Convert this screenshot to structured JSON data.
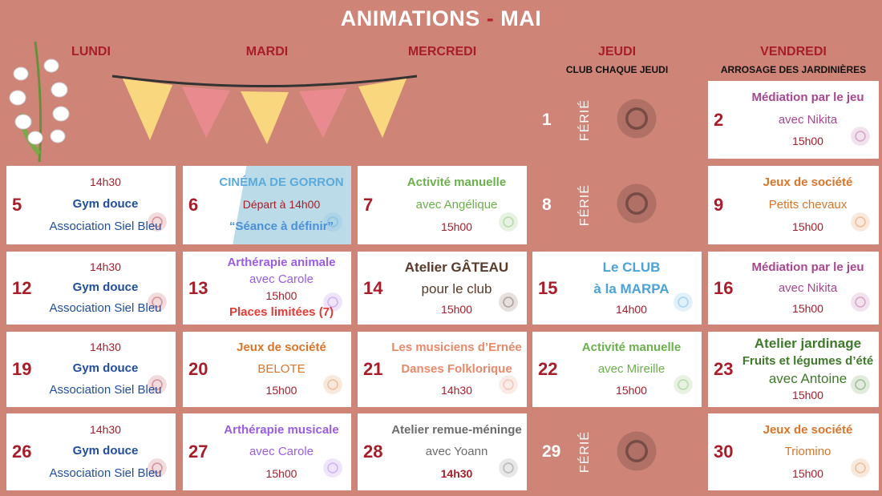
{
  "header": {
    "title_left": "ANIMATIONS",
    "dash": "-",
    "title_right": "MAI"
  },
  "days": [
    {
      "label": "LUNDI",
      "sub": ""
    },
    {
      "label": "MARDI",
      "sub": ""
    },
    {
      "label": "MERCREDI",
      "sub": ""
    },
    {
      "label": "JEUDI",
      "sub": "CLUB CHAQUE JEUDI"
    },
    {
      "label": "VENDREDI",
      "sub": "ARROSAGE DES JARDINIÈRES"
    }
  ],
  "colors": {
    "background": "#cf8478",
    "day_number": "#a71d2a",
    "time": "#a71d2a"
  },
  "ferie_label": "FÉRIÉ",
  "cells": [
    {
      "week": 0,
      "weekday": 3,
      "day": "1",
      "ferie": true,
      "icon": "cherries-icon",
      "glyph": "❦"
    },
    {
      "week": 0,
      "weekday": 4,
      "day": "2",
      "icon": "dice-icon",
      "glyph": "⚅",
      "lines": [
        {
          "text": "Médiation par le jeu",
          "color": "#a8478f",
          "kind": "t"
        },
        {
          "text": "avec Nikita",
          "color": "#a8478f",
          "kind": "s"
        },
        {
          "text": "15h00",
          "color": "#a71d2a",
          "kind": "h"
        }
      ]
    },
    {
      "week": 1,
      "weekday": 0,
      "day": "5",
      "icon": "dancers-icon",
      "glyph": "☺",
      "lines": [
        {
          "text": "14h30",
          "color": "#a71d2a",
          "kind": "h"
        },
        {
          "text": "Gym douce",
          "color": "#1f4e9c",
          "kind": "t"
        },
        {
          "text": "Association Siel Bleu",
          "color": "#1f4e9c",
          "kind": "s"
        }
      ]
    },
    {
      "week": 1,
      "weekday": 1,
      "day": "6",
      "icon": "film-projector-icon",
      "glyph": "⚙",
      "tint": "#bcdbe8",
      "lines": [
        {
          "text": "CINÉMA DE GORRON",
          "color": "#5aaadc",
          "kind": "t"
        },
        {
          "text": "Départ à 14h00",
          "color": "#a71d2a",
          "kind": "h"
        },
        {
          "text": "“Séance à définir”",
          "color": "#4a90d9",
          "kind": "t"
        }
      ]
    },
    {
      "week": 1,
      "weekday": 2,
      "day": "7",
      "icon": "paint-palette-icon",
      "glyph": "✎",
      "lines": [
        {
          "text": "Activité manuelle",
          "color": "#6ab04c",
          "kind": "t"
        },
        {
          "text": "avec Angélique",
          "color": "#6ab04c",
          "kind": "s"
        },
        {
          "text": "15h00",
          "color": "#a71d2a",
          "kind": "h"
        }
      ]
    },
    {
      "week": 1,
      "weekday": 3,
      "day": "8",
      "ferie": true,
      "icon": "cocktails-icon",
      "glyph": "♆"
    },
    {
      "week": 1,
      "weekday": 4,
      "day": "9",
      "icon": "board-game-icon",
      "glyph": "✵",
      "lines": [
        {
          "text": "Jeux de société",
          "color": "#d9752a",
          "kind": "t"
        },
        {
          "text": "Petits chevaux",
          "color": "#d9752a",
          "kind": "s"
        },
        {
          "text": "15h00",
          "color": "#a71d2a",
          "kind": "h"
        }
      ]
    },
    {
      "week": 2,
      "weekday": 0,
      "day": "12",
      "icon": "athlete-icon",
      "glyph": "☺",
      "lines": [
        {
          "text": "14h30",
          "color": "#a71d2a",
          "kind": "h"
        },
        {
          "text": "Gym douce",
          "color": "#1f4e9c",
          "kind": "t"
        },
        {
          "text": "Association Siel Bleu",
          "color": "#1f4e9c",
          "kind": "s"
        }
      ]
    },
    {
      "week": 2,
      "weekday": 1,
      "day": "13",
      "icon": "pets-icon",
      "glyph": "☻",
      "lines": [
        {
          "text": "Arthérapie animale",
          "color": "#9b5de5",
          "kind": "t"
        },
        {
          "text": "avec Carole",
          "color": "#9b5de5",
          "kind": "s"
        },
        {
          "text": "15h00",
          "color": "#a71d2a",
          "kind": "h"
        },
        {
          "text": "Places limitées (7)",
          "color": "#e53935",
          "kind": "t"
        }
      ]
    },
    {
      "week": 2,
      "weekday": 2,
      "day": "14",
      "icon": "chef-hat-icon",
      "glyph": "♔",
      "lines": [
        {
          "text": "Atelier GÂTEAU",
          "color": "#5a3a2a",
          "kind": "t big"
        },
        {
          "text": "pour le club",
          "color": "#5a3a2a",
          "kind": "s big"
        },
        {
          "text": "15h00",
          "color": "#a71d2a",
          "kind": "h"
        }
      ]
    },
    {
      "week": 2,
      "weekday": 3,
      "day": "15",
      "icon": "card-suits-icon",
      "glyph": "♠♥♦♣",
      "lines": [
        {
          "text": "Le CLUB",
          "color": "#4aa3d9",
          "kind": "t big"
        },
        {
          "text": "à la MARPA",
          "color": "#4aa3d9",
          "kind": "t big"
        },
        {
          "text": "14h00",
          "color": "#a71d2a",
          "kind": "h"
        }
      ]
    },
    {
      "week": 2,
      "weekday": 4,
      "day": "16",
      "icon": "ring-toss-icon",
      "glyph": "◎",
      "lines": [
        {
          "text": "Médiation par le jeu",
          "color": "#a8478f",
          "kind": "t"
        },
        {
          "text": "avec Nikita",
          "color": "#a8478f",
          "kind": "s"
        },
        {
          "text": "15h00",
          "color": "#a71d2a",
          "kind": "h"
        }
      ]
    },
    {
      "week": 3,
      "weekday": 0,
      "day": "19",
      "icon": "seniors-exercise-icon",
      "glyph": "☺",
      "lines": [
        {
          "text": "14h30",
          "color": "#a71d2a",
          "kind": "h"
        },
        {
          "text": "Gym douce",
          "color": "#1f4e9c",
          "kind": "t"
        },
        {
          "text": "Association Siel Bleu",
          "color": "#1f4e9c",
          "kind": "s"
        }
      ]
    },
    {
      "week": 3,
      "weekday": 1,
      "day": "20",
      "icon": "playing-cards-icon",
      "glyph": "♥",
      "lines": [
        {
          "text": "Jeux de société",
          "color": "#d9752a",
          "kind": "t"
        },
        {
          "text": "BELOTE",
          "color": "#d9752a",
          "kind": "s"
        },
        {
          "text": "15h00",
          "color": "#a71d2a",
          "kind": "h"
        }
      ]
    },
    {
      "week": 3,
      "weekday": 2,
      "day": "21",
      "icon": "music-notes-icon",
      "glyph": "♫",
      "lines": [
        {
          "text": "Les musiciens d’Ernée",
          "color": "#e8896a",
          "kind": "t"
        },
        {
          "text": "Danses Folklorique",
          "color": "#e8896a",
          "kind": "t"
        },
        {
          "text": "14h30",
          "color": "#a71d2a",
          "kind": "h"
        }
      ]
    },
    {
      "week": 3,
      "weekday": 3,
      "day": "22",
      "icon": "paint-brushes-icon",
      "glyph": "✎",
      "lines": [
        {
          "text": "Activité manuelle",
          "color": "#6ab04c",
          "kind": "t"
        },
        {
          "text": "avec Mireille",
          "color": "#6ab04c",
          "kind": "s"
        },
        {
          "text": "15h00",
          "color": "#a71d2a",
          "kind": "h"
        }
      ]
    },
    {
      "week": 3,
      "weekday": 4,
      "day": "23",
      "icon": "gardeners-icon",
      "glyph": "❀",
      "lines": [
        {
          "text": "Atelier jardinage",
          "color": "#3e7a2a",
          "kind": "t big"
        },
        {
          "text": "Fruits et légumes d’été",
          "color": "#3e7a2a",
          "kind": "t"
        },
        {
          "text": "avec Antoine",
          "color": "#3e7a2a",
          "kind": "s big"
        },
        {
          "text": "15h00",
          "color": "#a71d2a",
          "kind": "h"
        }
      ]
    },
    {
      "week": 4,
      "weekday": 0,
      "day": "26",
      "icon": "senior-dumbbells-icon",
      "glyph": "☺",
      "lines": [
        {
          "text": "14h30",
          "color": "#a71d2a",
          "kind": "h"
        },
        {
          "text": "Gym douce",
          "color": "#1f4e9c",
          "kind": "t"
        },
        {
          "text": "Association Siel Bleu",
          "color": "#1f4e9c",
          "kind": "s"
        }
      ]
    },
    {
      "week": 4,
      "weekday": 1,
      "day": "27",
      "icon": "accordion-icon",
      "glyph": "♬",
      "lines": [
        {
          "text": "Arthérapie musicale",
          "color": "#9b5de5",
          "kind": "t"
        },
        {
          "text": "avec Carole",
          "color": "#9b5de5",
          "kind": "s"
        },
        {
          "text": "15h00",
          "color": "#a71d2a",
          "kind": "h"
        }
      ]
    },
    {
      "week": 4,
      "weekday": 2,
      "day": "28",
      "icon": "brain-icon",
      "glyph": "✺",
      "lines": [
        {
          "text": "Atelier remue-méninge",
          "color": "#6b6b6b",
          "kind": "t"
        },
        {
          "text": "avec Yoann",
          "color": "#6b6b6b",
          "kind": "s"
        },
        {
          "text": "14h30",
          "color": "#a71d2a",
          "kind": "t h"
        }
      ]
    },
    {
      "week": 4,
      "weekday": 3,
      "day": "29",
      "ferie": true,
      "icon": "butterfly-icon",
      "glyph": "❦"
    },
    {
      "week": 4,
      "weekday": 4,
      "day": "30",
      "icon": "triomino-icon",
      "glyph": "▲",
      "lines": [
        {
          "text": "Jeux de société",
          "color": "#d9752a",
          "kind": "t"
        },
        {
          "text": "Triomino",
          "color": "#d9752a",
          "kind": "s"
        },
        {
          "text": "15h00",
          "color": "#a71d2a",
          "kind": "h"
        }
      ]
    }
  ]
}
